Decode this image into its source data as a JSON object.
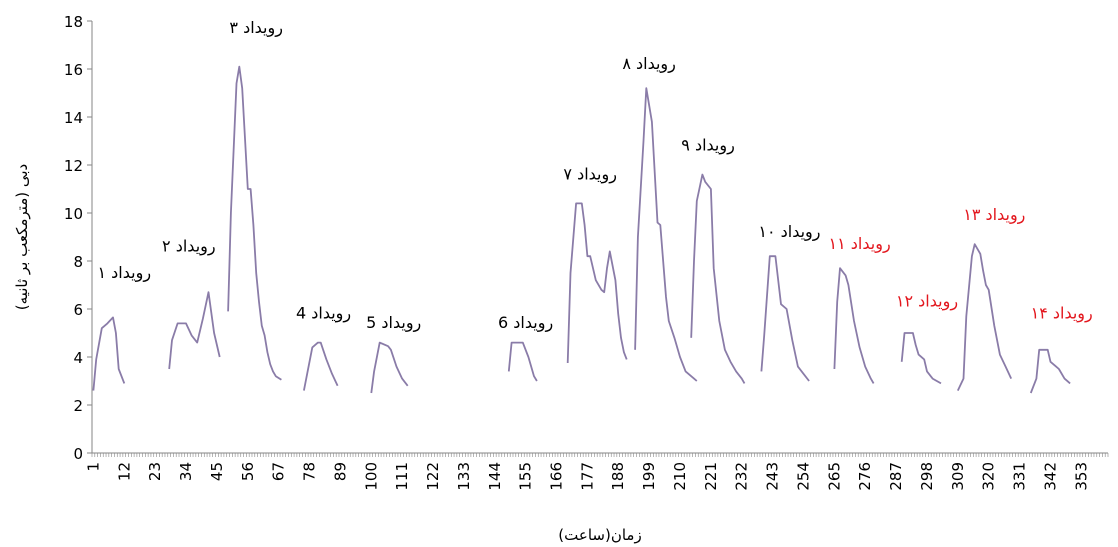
{
  "chart_data": {
    "type": "line",
    "xlabel": "زمان(ساعت)",
    "ylabel": "دبی (مترمکعب بر ثانیه)",
    "ylim": [
      0,
      18
    ],
    "yticks": [
      0,
      2,
      4,
      6,
      8,
      10,
      12,
      14,
      16,
      18
    ],
    "xlim": [
      1,
      362
    ],
    "xticks": [
      1,
      12,
      23,
      34,
      45,
      56,
      67,
      78,
      89,
      100,
      111,
      122,
      133,
      144,
      155,
      166,
      177,
      188,
      199,
      210,
      221,
      232,
      243,
      254,
      265,
      276,
      287,
      298,
      309,
      320,
      331,
      342,
      353
    ],
    "grid": false,
    "line_color": "#8A7CA8",
    "series": [
      {
        "x": [
          1,
          2,
          4,
          6,
          8,
          9,
          10,
          12
        ],
        "y": [
          2.6,
          3.9,
          5.2,
          5.4,
          5.65,
          5.0,
          3.5,
          2.9
        ]
      },
      {
        "x": [
          28,
          29,
          31,
          34,
          36,
          38,
          40,
          42,
          44,
          46
        ],
        "y": [
          3.5,
          4.7,
          5.4,
          5.4,
          4.9,
          4.6,
          5.6,
          6.7,
          5.0,
          4.0
        ]
      },
      {
        "x": [
          49,
          50,
          52,
          53,
          54,
          56,
          57,
          58,
          59,
          60,
          61,
          62,
          63,
          64,
          65,
          66,
          68
        ],
        "y": [
          5.9,
          10.0,
          15.4,
          16.1,
          15.2,
          11.0,
          11.0,
          9.5,
          7.5,
          6.3,
          5.3,
          4.9,
          4.2,
          3.7,
          3.4,
          3.2,
          3.05
        ]
      },
      {
        "x": [
          76,
          77,
          79,
          81,
          82,
          84,
          86,
          88
        ],
        "y": [
          2.6,
          3.2,
          4.4,
          4.6,
          4.6,
          3.9,
          3.3,
          2.8
        ]
      },
      {
        "x": [
          100,
          101,
          103,
          106,
          107,
          109,
          111,
          113
        ],
        "y": [
          2.5,
          3.4,
          4.6,
          4.45,
          4.3,
          3.6,
          3.1,
          2.8
        ]
      },
      {
        "x": [
          149,
          150,
          154,
          156,
          158,
          159
        ],
        "y": [
          3.4,
          4.6,
          4.6,
          4.0,
          3.2,
          3.0
        ]
      },
      {
        "x": [
          170,
          171,
          173,
          175,
          176,
          177,
          178,
          180,
          182,
          183,
          184,
          185,
          187,
          188,
          189,
          190,
          191
        ],
        "y": [
          3.75,
          7.5,
          10.4,
          10.4,
          9.5,
          8.2,
          8.2,
          7.2,
          6.8,
          6.7,
          7.7,
          8.4,
          7.2,
          5.8,
          4.8,
          4.2,
          3.9
        ]
      },
      {
        "x": [
          194,
          195,
          197,
          198,
          200,
          202,
          203,
          205,
          206,
          208,
          210,
          212,
          214,
          215,
          216
        ],
        "y": [
          4.3,
          9.0,
          13.0,
          15.2,
          13.8,
          9.6,
          9.5,
          6.5,
          5.5,
          4.8,
          4.0,
          3.4,
          3.2,
          3.1,
          3.0
        ]
      },
      {
        "x": [
          214,
          215,
          216,
          218,
          219,
          221,
          222,
          224,
          226,
          228,
          230,
          232,
          233
        ],
        "y": [
          4.8,
          8.0,
          10.5,
          11.6,
          11.3,
          11.0,
          7.7,
          5.5,
          4.3,
          3.8,
          3.4,
          3.1,
          2.9
        ]
      },
      {
        "x": [
          239,
          240,
          242,
          244,
          246,
          248,
          250,
          252,
          254,
          256
        ],
        "y": [
          3.4,
          4.9,
          8.2,
          8.2,
          6.2,
          6.0,
          4.7,
          3.6,
          3.3,
          3.0
        ]
      },
      {
        "x": [
          265,
          266,
          267,
          269,
          270,
          272,
          274,
          276,
          278,
          279
        ],
        "y": [
          3.5,
          6.3,
          7.7,
          7.4,
          7.0,
          5.5,
          4.4,
          3.6,
          3.1,
          2.9
        ]
      },
      {
        "x": [
          289,
          290,
          293,
          294,
          295,
          297,
          298,
          300,
          303
        ],
        "y": [
          3.8,
          5.0,
          5.0,
          4.5,
          4.1,
          3.9,
          3.4,
          3.1,
          2.9
        ]
      },
      {
        "x": [
          309,
          311,
          312,
          314,
          315,
          317,
          318,
          319,
          320,
          322,
          324,
          326,
          328
        ],
        "y": [
          2.6,
          3.1,
          5.7,
          8.2,
          8.7,
          8.3,
          7.6,
          7.0,
          6.8,
          5.3,
          4.1,
          3.6,
          3.1
        ]
      },
      {
        "x": [
          335,
          337,
          338,
          341,
          342,
          344,
          345,
          347,
          349
        ],
        "y": [
          2.5,
          3.1,
          4.3,
          4.3,
          3.8,
          3.6,
          3.5,
          3.1,
          2.9
        ]
      }
    ],
    "annotations": [
      {
        "text": "رویداد ۱",
        "x": 12,
        "y": 7.3,
        "color": "#000000"
      },
      {
        "text": "رویداد ۲",
        "x": 35,
        "y": 8.4,
        "color": "#000000"
      },
      {
        "text": "رویداد ۳",
        "x": 59,
        "y": 17.5,
        "color": "#000000"
      },
      {
        "text": "رویداد 4",
        "x": 83,
        "y": 5.6,
        "color": "#000000"
      },
      {
        "text": "رویداد 5",
        "x": 108,
        "y": 5.2,
        "color": "#000000"
      },
      {
        "text": "رویداد 6",
        "x": 155,
        "y": 5.2,
        "color": "#000000"
      },
      {
        "text": "رویداد ۷",
        "x": 178,
        "y": 11.4,
        "color": "#000000"
      },
      {
        "text": "رویداد ۸",
        "x": 199,
        "y": 16.0,
        "color": "#000000"
      },
      {
        "text": "رویداد ۹",
        "x": 220,
        "y": 12.6,
        "color": "#000000"
      },
      {
        "text": "رویداد ۱۰",
        "x": 249,
        "y": 9.0,
        "color": "#000000"
      },
      {
        "text": "رویداد ۱۱",
        "x": 274,
        "y": 8.5,
        "color": "#E3171E"
      },
      {
        "text": "رویداد ۱۲",
        "x": 298,
        "y": 6.1,
        "color": "#E3171E"
      },
      {
        "text": "رویداد ۱۳",
        "x": 322,
        "y": 9.7,
        "color": "#E3171E"
      },
      {
        "text": "رویداد ۱۴",
        "x": 346,
        "y": 5.6,
        "color": "#E3171E"
      }
    ]
  }
}
